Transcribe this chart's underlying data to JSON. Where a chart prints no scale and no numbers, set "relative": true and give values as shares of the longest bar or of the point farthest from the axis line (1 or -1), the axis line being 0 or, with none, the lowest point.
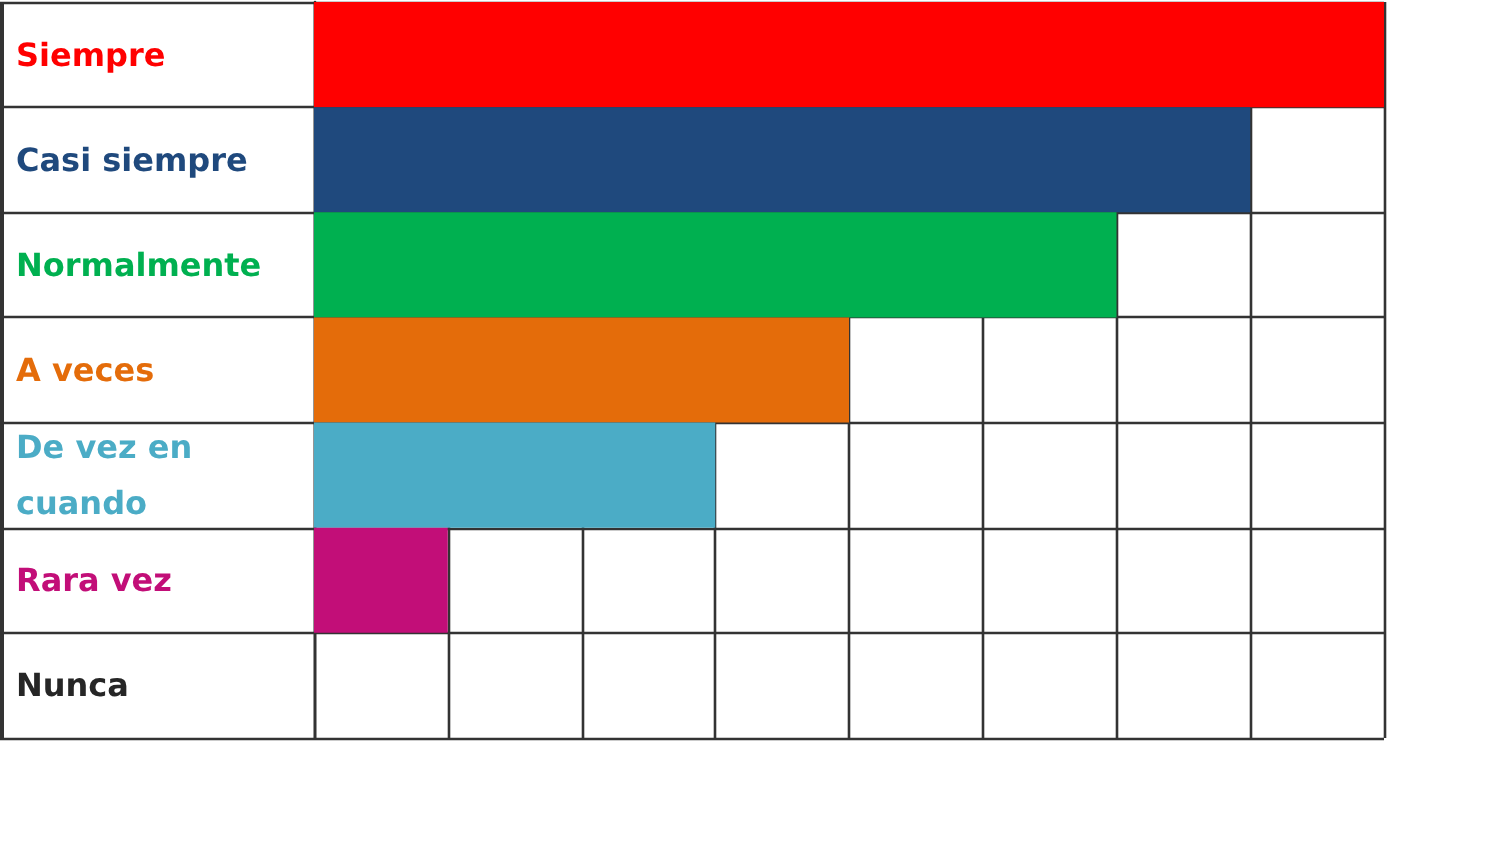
{
  "chart_data": {
    "type": "bar",
    "orientation": "horizontal",
    "relative": true,
    "categories": [
      "Siempre",
      "Casi siempre",
      "Normalmente",
      "A veces",
      "De vez en cuando",
      "Rara vez",
      "Nunca"
    ],
    "values": [
      1,
      0.875,
      0.75,
      0.5,
      0.375,
      0.125,
      0
    ],
    "colors": [
      "#ff0000",
      "#1f497d",
      "#00b050",
      "#e46c0a",
      "#4bacc6",
      "#c20e78",
      "#262626"
    ],
    "grid": true
  }
}
